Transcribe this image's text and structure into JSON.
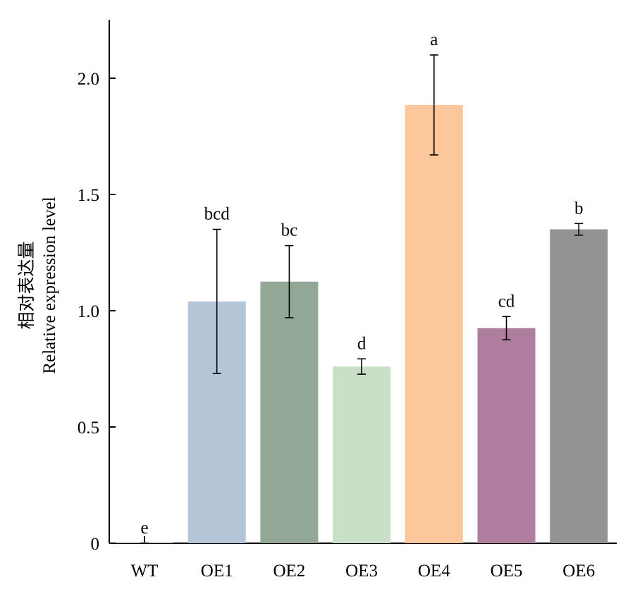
{
  "chart_data": {
    "type": "bar",
    "title": "",
    "xlabel": "",
    "ylabel_cn": "相对表达量",
    "ylabel_en": "Relative expression level",
    "ylim": [
      0,
      2.25
    ],
    "yticks": [
      0,
      0.5,
      1.0,
      1.5,
      2.0
    ],
    "ytick_labels": [
      "0",
      "0.5",
      "1.0",
      "1.5",
      "2.0"
    ],
    "categories": [
      "WT",
      "OE1",
      "OE2",
      "OE3",
      "OE4",
      "OE5",
      "OE6"
    ],
    "values": [
      0.0,
      1.04,
      1.125,
      0.76,
      1.885,
      0.925,
      1.35
    ],
    "errors": [
      0.0,
      0.31,
      0.155,
      0.033,
      0.215,
      0.05,
      0.025
    ],
    "significance": [
      "e",
      "bcd",
      "bc",
      "d",
      "a",
      "cd",
      "b"
    ],
    "colors": [
      "#b7c9b6",
      "#b4c5d7",
      "#93a797",
      "#c9dfc8",
      "#fdc79c",
      "#af7e9e",
      "#929493"
    ],
    "grid": false
  }
}
